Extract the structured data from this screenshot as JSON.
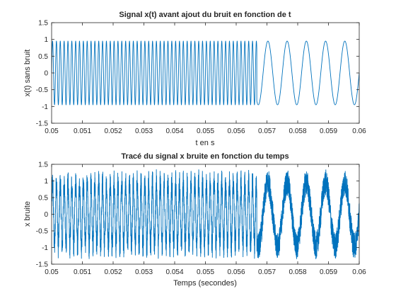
{
  "chart_data": [
    {
      "type": "line",
      "title": "Signal x(t) avant ajout du bruit en fonction de t",
      "xlabel": "t en s",
      "ylabel": "x(t) sans bruit",
      "xlim": [
        0.05,
        0.06
      ],
      "ylim": [
        -1.5,
        1.5
      ],
      "xticks": [
        "0.05",
        "0.051",
        "0.052",
        "0.053",
        "0.054",
        "0.055",
        "0.056",
        "0.057",
        "0.058",
        "0.059",
        "0.06"
      ],
      "yticks": [
        "-1.5",
        "-1",
        "-0.5",
        "0",
        "0.5",
        "1",
        "1.5"
      ],
      "grid": false,
      "series": [
        {
          "color": "#0072bd",
          "segments": [
            {
              "x_start": 0.05,
              "x_end": 0.05667,
              "frequency_hz": 8000,
              "amplitude": 0.95
            },
            {
              "x_start": 0.05667,
              "x_end": 0.06,
              "frequency_hz": 1600,
              "amplitude": 0.95
            }
          ]
        }
      ]
    },
    {
      "type": "line",
      "title": "Tracé du signal x bruite en fonction du temps",
      "xlabel": "Temps (secondes)",
      "ylabel": "x bruite",
      "xlim": [
        0.05,
        0.06
      ],
      "ylim": [
        -1.5,
        1.5
      ],
      "xticks": [
        "0.05",
        "0.051",
        "0.052",
        "0.053",
        "0.054",
        "0.055",
        "0.056",
        "0.057",
        "0.058",
        "0.059",
        "0.06"
      ],
      "yticks": [
        "-1.5",
        "-1",
        "-0.5",
        "0",
        "0.5",
        "1",
        "1.5"
      ],
      "grid": false,
      "series": [
        {
          "color": "#0072bd",
          "segments": [
            {
              "x_start": 0.05,
              "x_end": 0.05667,
              "frequency_hz": 8000,
              "amplitude": 0.95
            },
            {
              "x_start": 0.05667,
              "x_end": 0.06,
              "frequency_hz": 1600,
              "amplitude": 0.95
            }
          ],
          "noise_amplitude": 0.4
        }
      ]
    }
  ]
}
